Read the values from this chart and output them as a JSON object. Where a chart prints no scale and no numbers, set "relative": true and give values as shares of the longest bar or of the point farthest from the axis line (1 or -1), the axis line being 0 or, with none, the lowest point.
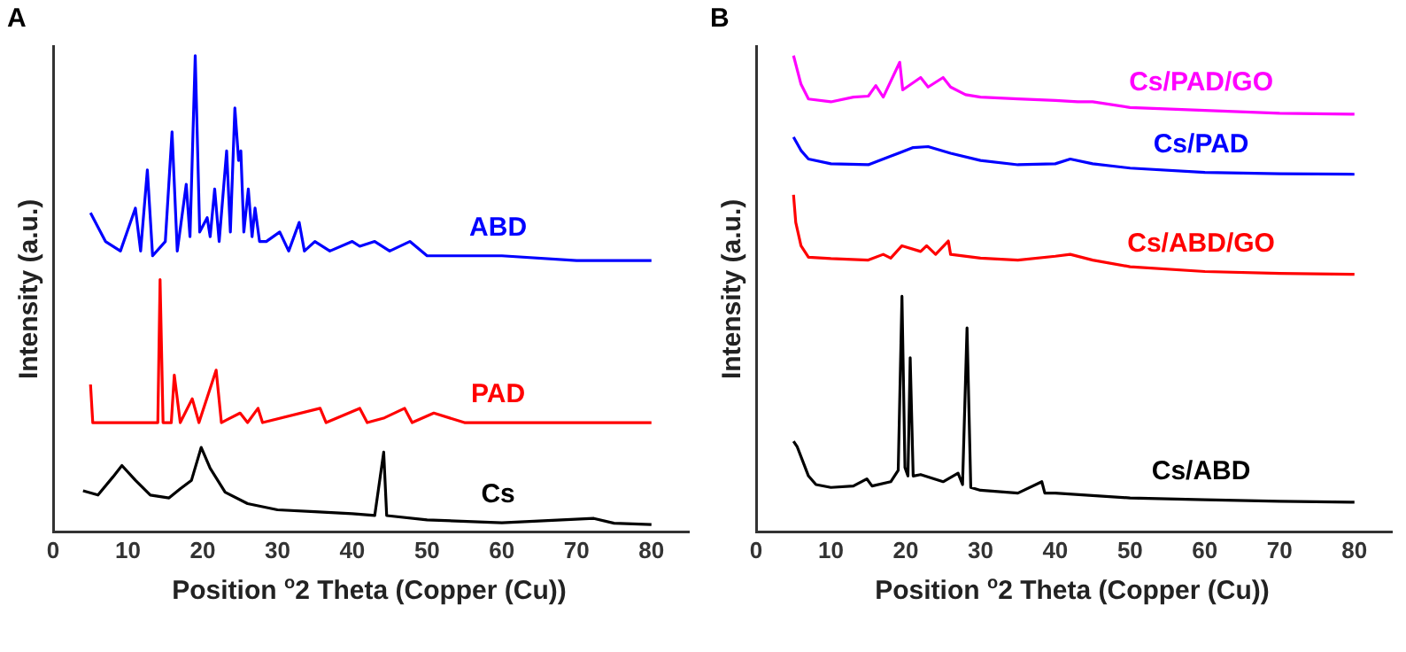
{
  "chart_data": [
    {
      "type": "line",
      "title": "A",
      "xlabel": "Position $^{o}$2 Theta (Copper (Cu))",
      "ylabel": "Intensity (a.u.)",
      "relative": true,
      "xlim": [
        0,
        85
      ],
      "xticks": [
        0,
        10,
        20,
        30,
        40,
        50,
        60,
        70,
        80
      ],
      "grid": false,
      "legend": false,
      "marker": "none",
      "series": [
        {
          "name": "ABD",
          "color": "#0000ff",
          "x": [
            5,
            7,
            9,
            11,
            11.7,
            12.6,
            13.3,
            15,
            15.9,
            16.6,
            17.8,
            18.3,
            19,
            19.6,
            20.6,
            21,
            21.6,
            22.2,
            23.2,
            23.7,
            24.3,
            24.8,
            25.1,
            25.5,
            26.1,
            26.6,
            27,
            27.6,
            28.5,
            30.3,
            31.5,
            32.9,
            33.6,
            35,
            37,
            40,
            41,
            43,
            45,
            47.7,
            50,
            55,
            60,
            70,
            80
          ],
          "values": [
            0.67,
            0.61,
            0.59,
            0.68,
            0.59,
            0.76,
            0.58,
            0.61,
            0.84,
            0.59,
            0.73,
            0.62,
            1,
            0.63,
            0.66,
            0.62,
            0.72,
            0.61,
            0.8,
            0.63,
            0.89,
            0.78,
            0.8,
            0.63,
            0.72,
            0.62,
            0.68,
            0.61,
            0.61,
            0.63,
            0.59,
            0.65,
            0.59,
            0.61,
            0.59,
            0.61,
            0.6,
            0.61,
            0.59,
            0.61,
            0.58,
            0.58,
            0.58,
            0.57,
            0.57
          ]
        },
        {
          "name": "PAD",
          "color": "#ff0000",
          "x": [
            5,
            5.3,
            14,
            14.3,
            14.7,
            15.8,
            16.2,
            17,
            18.6,
            19.5,
            21.8,
            22.5,
            25,
            26,
            27.4,
            28,
            35.7,
            36.5,
            41,
            42,
            44.3,
            47,
            48,
            50.9,
            55,
            80
          ],
          "values": [
            0.31,
            0.23,
            0.23,
            0.53,
            0.23,
            0.23,
            0.33,
            0.23,
            0.28,
            0.23,
            0.34,
            0.23,
            0.25,
            0.23,
            0.26,
            0.23,
            0.26,
            0.23,
            0.26,
            0.23,
            0.24,
            0.26,
            0.23,
            0.25,
            0.23,
            0.23
          ]
        },
        {
          "name": "Cs",
          "color": "#000000",
          "x": [
            4,
            6,
            8,
            9.2,
            11,
            13,
            15.5,
            17,
            18.5,
            19.8,
            21,
            23,
            26,
            30,
            35,
            40,
            43,
            44.2,
            44.6,
            50,
            60,
            72.3,
            75,
            80
          ],
          "values": [
            0.087,
            0.078,
            0.116,
            0.14,
            0.109,
            0.078,
            0.072,
            0.091,
            0.109,
            0.178,
            0.134,
            0.084,
            0.06,
            0.047,
            0.043,
            0.039,
            0.035,
            0.168,
            0.035,
            0.026,
            0.02,
            0.029,
            0.019,
            0.016
          ]
        }
      ]
    },
    {
      "type": "line",
      "title": "B",
      "xlabel": "Position $^{o}$2 Theta (Copper (Cu))",
      "ylabel": "Intensity (a.u.)",
      "relative": true,
      "xlim": [
        0,
        85
      ],
      "xticks": [
        0,
        10,
        20,
        30,
        40,
        50,
        60,
        70,
        80
      ],
      "grid": false,
      "legend": false,
      "marker": "none",
      "series": [
        {
          "name": "Cs/PAD/GO",
          "color": "#ff00ff",
          "x": [
            5,
            6,
            7,
            10,
            13,
            15,
            16,
            17,
            19.2,
            19.6,
            22,
            23,
            25,
            26,
            28,
            30,
            35,
            40,
            43,
            45,
            50,
            60,
            70,
            80
          ],
          "values": [
            1,
            0.94,
            0.909,
            0.903,
            0.913,
            0.915,
            0.937,
            0.913,
            0.986,
            0.928,
            0.954,
            0.934,
            0.954,
            0.934,
            0.918,
            0.913,
            0.909,
            0.906,
            0.903,
            0.903,
            0.891,
            0.885,
            0.879,
            0.877
          ]
        },
        {
          "name": "Cs/PAD",
          "color": "#0000ff",
          "x": [
            5,
            6,
            7,
            10,
            15,
            18,
            21,
            23,
            26,
            30,
            35,
            40,
            42,
            45,
            50,
            60,
            70,
            80
          ],
          "values": [
            0.829,
            0.801,
            0.783,
            0.773,
            0.771,
            0.789,
            0.807,
            0.809,
            0.795,
            0.78,
            0.771,
            0.773,
            0.783,
            0.773,
            0.764,
            0.755,
            0.752,
            0.751
          ]
        },
        {
          "name": "Cs/ABD/GO",
          "color": "#ff0000",
          "x": [
            5,
            5.3,
            6,
            7,
            10,
            15,
            17,
            18,
            19.5,
            22,
            22.8,
            24,
            25.7,
            26,
            30,
            35,
            40,
            42,
            45,
            50,
            60,
            70,
            80
          ],
          "values": [
            0.708,
            0.65,
            0.601,
            0.577,
            0.574,
            0.571,
            0.583,
            0.575,
            0.601,
            0.589,
            0.601,
            0.583,
            0.611,
            0.583,
            0.575,
            0.571,
            0.579,
            0.583,
            0.571,
            0.557,
            0.547,
            0.543,
            0.541
          ]
        },
        {
          "name": "Cs/ABD",
          "color": "#000000",
          "x": [
            5,
            5.5,
            7,
            8,
            10,
            13,
            14.8,
            15.5,
            18,
            19,
            19.5,
            19.9,
            20.3,
            20.6,
            21,
            22,
            25,
            27,
            27.6,
            28.2,
            28.7,
            30,
            35,
            38.2,
            38.6,
            40,
            50,
            60,
            70,
            80
          ],
          "values": [
            0.191,
            0.179,
            0.118,
            0.1,
            0.094,
            0.097,
            0.112,
            0.097,
            0.106,
            0.13,
            0.495,
            0.136,
            0.118,
            0.366,
            0.118,
            0.121,
            0.106,
            0.124,
            0.1,
            0.429,
            0.094,
            0.088,
            0.082,
            0.106,
            0.082,
            0.082,
            0.072,
            0.068,
            0.065,
            0.063
          ]
        }
      ]
    }
  ]
}
